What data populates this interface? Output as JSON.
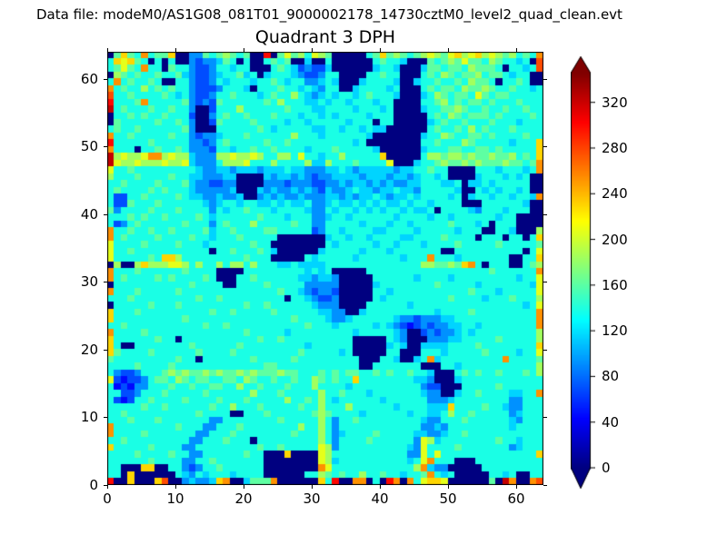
{
  "header": {
    "data_file_label": "Data file: modeM0/AS1G08_081T01_9000002178_14730cztM0_level2_quad_clean.evt"
  },
  "chart_data": {
    "type": "heatmap",
    "title": "Quadrant 3 DPH",
    "xlabel": "",
    "ylabel": "",
    "xlim": [
      0,
      64
    ],
    "ylim": [
      0,
      64
    ],
    "x_ticks": [
      0,
      10,
      20,
      30,
      40,
      50,
      60
    ],
    "y_ticks": [
      0,
      10,
      20,
      30,
      40,
      50,
      60
    ],
    "grid": false,
    "colormap": "jet",
    "colorbar": {
      "position": "right",
      "ticks": [
        0,
        40,
        80,
        120,
        160,
        200,
        240,
        280,
        320
      ],
      "vmin": 0,
      "vmax": 346,
      "extend": "both"
    },
    "grid_encoding": {
      "note": "64 rows top(y=63) to bottom(y=0), 64 hex chars per row; value = hexdigit/15 * vmax",
      "levels": {
        "0": 0,
        "3": 69,
        "6": 138,
        "9": 208,
        "c": 277,
        "f": 346
      }
    },
    "grid_rows_top_to_bottom": [
      "07a76b677a0044767876700d0797869870000067a7876789879a89a89878676b",
      "6a9a76060600434457606006767005006000000676650007678797768766560c",
      "67976b660766433466566000676534335000000566500057767768777606656c",
      "0876766766754334566756056665433466000066766000676876778677656600",
      "6b67667600664334656665667656644565000566665005667667687760667600",
      "b676686767664333466650666766565466005666656000676776877876676656",
      "c667666676564334667666567668654565665676665000568767769767766666",
      "d6667b6666674343766666676866655656656665660000667867677676667666",
      "e676667667664003666866666676665566665666560000566778766766766766",
      "0667676676663004676676667666566565666656660000067687677767666676",
      "0766666766764003766667666656656666656660660000056766766676665666",
      "6766766666674000666666765666665566566565500000067667686766676666",
      "b66766666766434456667666666866656666665000000056687667767 6666766",
      "d66666766666443467666667667666666666560000000066766687666665666a",
      "b666066766764443665667667666656667666665000000566677667 76766666a",
      "e89889bb8988544488988986688696656686666 6a00000688788787787786 76a",
      "e98898889889544468889666866668558666766669000566787787877787767b",
      "9667666666666544554555455565544455654555554556676600006665666 56b",
      "8666766667665544455000054554543445555455545545665600005666565600",
      "6676666766675443344000044434443344545545454455666556055656666600",
      "6766667676665444445000545445454354456554556554666665006565665600",
      "6336676666765544544500454544544455454556545565666656056656 65665b",
      "6337666766666654566566556565564456556565655656656666000666666500",
      "7466667666766664656676665666654465665656566565560666654666566600",
      "6667676676666765666666766656664456656666665666656656666665660000",
      "6346766666676664676668666667664466666566656656666676665606660000",
      "b667667667666675667666677666663466566665566665666665666006650008",
      "b67666676666766566676666600000005665665666655666676666066606606a",
      "9666676666766656666667660000000065666665665666566667666667666667",
      "9667666666666660667666765000000566666566656666666006666666666069",
      "96666676aa86666666667666000006566666566666656 66b666566666660066a",
      "08008a88899868668688686665565555666666666666668877 87ab6066600678",
      "b66676666667666600006666666665656000006666666666666666667666666b",
      "b676666767666676000667666666554554000006666665666656666666665669",
      "0666666666667666600666676666644444000005666666667666665666666659",
      "b666766666766666666666666766543443000006656666666666676665666669",
      "6667666666666766766666666606654334000006566666666676666566676668",
      "0666667666766666666676676666665444000066666656666666666666666569",
      "a66676666666666766766666766666655440056666666666566667666666666b",
      "a66666666667666666666666666766665445666666544344455666666666666b",
      "66766666666666766766666666666766656666656543234344556656666 6666b",
      "b666676666666666666676666656666666665666665400343445656666666668",
      "a666666766066666666666766766666666660000065400044455666667666668",
      "a60066666666766666676666666665666666000005650055556666766666666a",
      "a766667666666766667666666666766666560000066000666566666766665669",
      "7666666666766066666667666667666666666000665005 6b5666666666b66667",
      "6666766667666666666666677666666666666006666666000665666666666668",
      "6433466678787787877878777877666767677667676676650006767667666768",
      "93233467768767766776876676676687 6766a66666666554000566 6666666666",
      "6232446667667667766866766676668666656666666666433000666667666666",
      "6633466676666676666668666766666866766656666666544005667 66665566b",
      "6323667666676666766676666686676865666666566666644456666666644666",
      "66666766766666676686667666667668666866666656666555a6666766544666",
      "6676666666666766660066676666667876666566666656 65568667666 6645666",
      "6667666766666664466666666766666864667666666666544666766666654666",
      "b666666666766644666766666666866864666666666666445466666666656666",
      "b666676666666446667666666667666864566667666665544566766666666666",
      "6676666666664466676660666666666864666676666664985666666667665666",
      "a666667666644666666666766766666984666666666654966667666666645666",
      "666676666766446666667660 00a0000986666666666644969666666 66666666a",
      "6666667666644667666666600000000985666666666656 9b6660006666666666",
      "66000aa00664346676666660 0000000b966666666666 68b5440000066666666",
      "660a000000654656665666600000066876766866766566 7b6560000066560066",
      "d00a000ac0045445ab005777b000000a6d00bb060db0b69aa900000070eb00bc"
    ]
  }
}
